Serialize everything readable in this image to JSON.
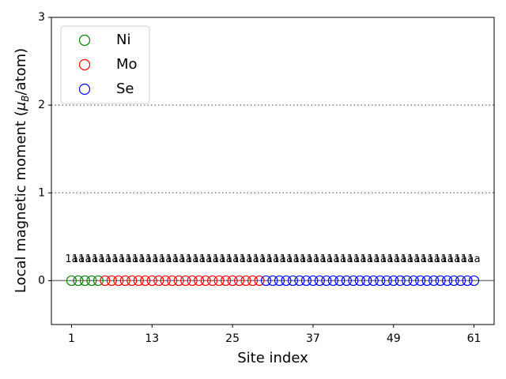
{
  "chart_data": {
    "type": "scatter",
    "xlabel": "Site index",
    "ylabel": [
      "Local magnetic moment (",
      "μ",
      "B",
      "/atom)"
    ],
    "xlim": [
      -2,
      64
    ],
    "xticks": [
      1,
      13,
      25,
      37,
      49,
      61
    ],
    "ylim": [
      -0.5,
      3
    ],
    "yticks": [
      0,
      1,
      2,
      3
    ],
    "hlines": [
      {
        "value": 0,
        "style": "solid"
      },
      {
        "value": 1,
        "style": "dotted"
      },
      {
        "value": 2,
        "style": "dotted"
      }
    ],
    "legend": "upper left",
    "series": [
      {
        "name": "Ni",
        "color": "#008000",
        "x": [
          1,
          2,
          3,
          4,
          5
        ],
        "values": [
          0,
          0,
          0,
          0,
          0
        ],
        "labels": [
          "1a",
          "1a",
          "1a",
          "1a",
          "1a"
        ]
      },
      {
        "name": "Mo",
        "color": "#ff0000",
        "x": [
          6,
          7,
          8,
          9,
          10,
          11,
          12,
          13,
          14,
          15,
          16,
          17,
          18,
          19,
          20,
          21,
          22,
          23,
          24,
          25,
          26,
          27,
          28,
          29
        ],
        "values": [
          0,
          0,
          0,
          0,
          0,
          0,
          0,
          0,
          0,
          0,
          0,
          0,
          0,
          0,
          0,
          0,
          0,
          0,
          0,
          0,
          0,
          0,
          0,
          0
        ],
        "labels": [
          "1a",
          "1a",
          "1a",
          "1a",
          "1a",
          "1a",
          "1a",
          "1a",
          "1a",
          "1a",
          "1a",
          "1a",
          "1a",
          "1a",
          "1a",
          "1a",
          "1a",
          "1a",
          "1a",
          "1a",
          "1a",
          "1a",
          "1a",
          "1a"
        ]
      },
      {
        "name": "Se",
        "color": "#0000ff",
        "x": [
          30,
          31,
          32,
          33,
          34,
          35,
          36,
          37,
          38,
          39,
          40,
          41,
          42,
          43,
          44,
          45,
          46,
          47,
          48,
          49,
          50,
          51,
          52,
          53,
          54,
          55,
          56,
          57,
          58,
          59,
          60,
          61
        ],
        "values": [
          0,
          0,
          0,
          0,
          0,
          0,
          0,
          0,
          0,
          0,
          0,
          0,
          0,
          0,
          0,
          0,
          0,
          0,
          0,
          0,
          0,
          0,
          0,
          0,
          0,
          0,
          0,
          0,
          0,
          0,
          0,
          0
        ],
        "labels": [
          "1a",
          "1a",
          "1a",
          "1a",
          "1a",
          "1a",
          "1a",
          "1a",
          "1a",
          "1a",
          "1a",
          "1a",
          "1a",
          "1a",
          "1a",
          "1a",
          "1a",
          "1a",
          "1a",
          "1a",
          "1a",
          "1a",
          "1a",
          "1a",
          "1a",
          "1a",
          "1a",
          "1a",
          "1a",
          "1a",
          "1a",
          "1a"
        ]
      }
    ]
  }
}
